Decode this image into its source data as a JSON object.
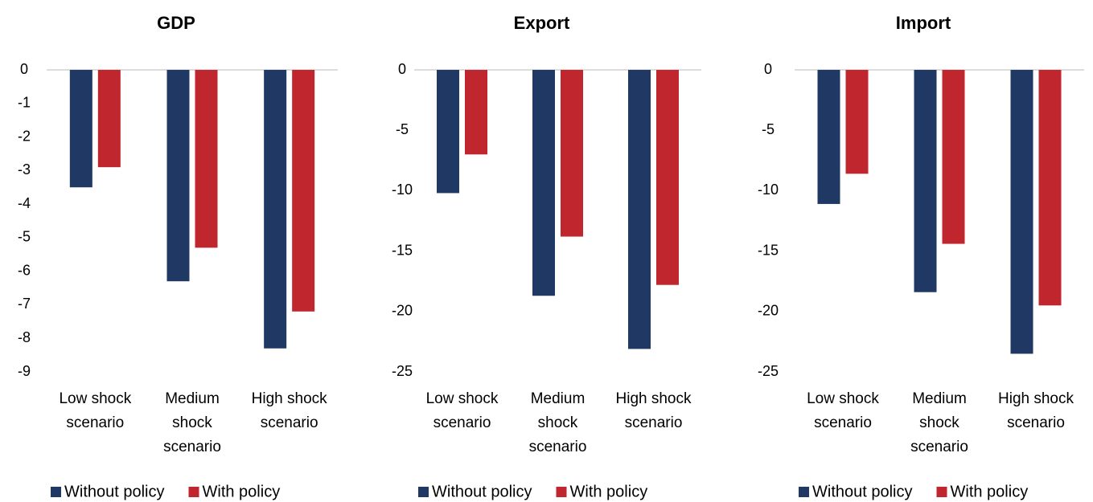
{
  "chart_data": [
    {
      "type": "bar",
      "title": "GDP",
      "categories": [
        "Low shock scenario",
        "Medium shock scenario",
        "High shock scenario"
      ],
      "series": [
        {
          "name": "Without policy",
          "color": "#1f3864",
          "values": [
            -3.5,
            -6.3,
            -8.3
          ]
        },
        {
          "name": "With policy",
          "color": "#c0262d",
          "values": [
            -2.9,
            -5.3,
            -7.2
          ]
        }
      ],
      "ylim": [
        -9,
        0
      ],
      "yticks": [
        0,
        -1,
        -2,
        -3,
        -4,
        -5,
        -6,
        -7,
        -8,
        -9
      ]
    },
    {
      "type": "bar",
      "title": "Export",
      "categories": [
        "Low shock scenario",
        "Medium shock scenario",
        "High shock scenario"
      ],
      "series": [
        {
          "name": "Without policy",
          "color": "#1f3864",
          "values": [
            -10.2,
            -18.7,
            -23.1
          ]
        },
        {
          "name": "With policy",
          "color": "#c0262d",
          "values": [
            -7.0,
            -13.8,
            -17.8
          ]
        }
      ],
      "ylim": [
        -25,
        0
      ],
      "yticks": [
        0,
        -5,
        -10,
        -15,
        -20,
        -25
      ]
    },
    {
      "type": "bar",
      "title": "Import",
      "categories": [
        "Low shock scenario",
        "Medium shock scenario",
        "High shock scenario"
      ],
      "series": [
        {
          "name": "Without policy",
          "color": "#1f3864",
          "values": [
            -11.1,
            -18.4,
            -23.5
          ]
        },
        {
          "name": "With policy",
          "color": "#c0262d",
          "values": [
            -8.6,
            -14.4,
            -19.5
          ]
        }
      ],
      "ylim": [
        -25,
        0
      ],
      "yticks": [
        0,
        -5,
        -10,
        -15,
        -20,
        -25
      ]
    }
  ]
}
